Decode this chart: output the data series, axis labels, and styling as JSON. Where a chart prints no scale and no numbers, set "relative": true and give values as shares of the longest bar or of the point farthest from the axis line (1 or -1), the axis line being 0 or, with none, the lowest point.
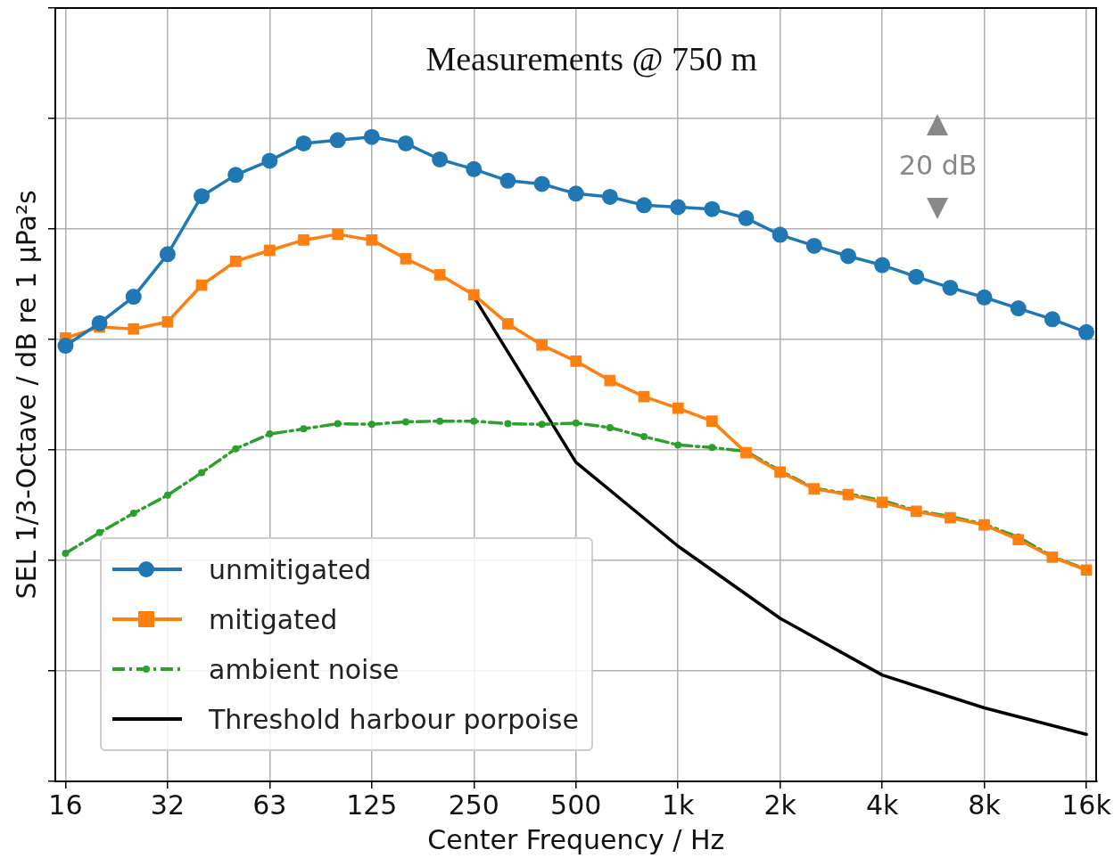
{
  "chart_data": {
    "type": "line",
    "title": "Measurements @ 750 m",
    "xlabel": "Center Frequency / Hz",
    "ylabel": "SEL 1/3-Octave / dB re 1 µPa²s",
    "categories": [
      "16",
      null,
      null,
      "32",
      null,
      null,
      "63",
      null,
      null,
      "125",
      null,
      null,
      "250",
      null,
      null,
      "500",
      null,
      null,
      "1k",
      null,
      null,
      "2k",
      null,
      null,
      "4k",
      null,
      null,
      "8k",
      null,
      null,
      "16k"
    ],
    "relative": true,
    "grid": true,
    "legend": "bottom left",
    "annotations": [
      "20 dB"
    ],
    "series": [
      {
        "name": "unmitigated",
        "color": "#1f77b4",
        "marker": "circle",
        "line_style": "solid",
        "values": [
          0.676,
          0.711,
          0.752,
          0.818,
          0.908,
          0.941,
          0.963,
          0.99,
          0.995,
          1,
          0.99,
          0.965,
          0.95,
          0.932,
          0.927,
          0.912,
          0.907,
          0.894,
          0.891,
          0.888,
          0.874,
          0.848,
          0.831,
          0.815,
          0.801,
          0.783,
          0.766,
          0.751,
          0.734,
          0.717,
          0.697
        ]
      },
      {
        "name": "mitigated",
        "color": "#ff7f0e",
        "marker": "square",
        "line_style": "solid",
        "values": [
          0.688,
          0.705,
          0.702,
          0.713,
          0.77,
          0.807,
          0.824,
          0.84,
          0.849,
          0.84,
          0.811,
          0.786,
          0.755,
          0.71,
          0.677,
          0.652,
          0.622,
          0.597,
          0.579,
          0.559,
          0.51,
          0.48,
          0.454,
          0.445,
          0.433,
          0.419,
          0.409,
          0.398,
          0.375,
          0.348,
          0.328
        ]
      },
      {
        "name": "ambient noise",
        "color": "#2ca02c",
        "marker": "circle",
        "line_style": "dashed",
        "values": [
          0.354,
          0.386,
          0.416,
          0.444,
          0.479,
          0.516,
          0.539,
          0.547,
          0.555,
          0.554,
          0.558,
          0.559,
          0.559,
          0.555,
          0.554,
          0.556,
          0.549,
          0.535,
          0.522,
          0.518,
          0.512,
          0.482,
          0.455,
          0.446,
          0.436,
          0.42,
          0.411,
          0.399,
          0.379,
          0.349,
          0.329
        ]
      },
      {
        "name": "Threshold harbour porpoise",
        "color": "#000000",
        "marker": "none",
        "line_style": "solid",
        "x": [
          "250",
          "500",
          "1k",
          "2k",
          "4k",
          "8k",
          "16k"
        ],
        "values": [
          0.752,
          0.495,
          0.365,
          0.253,
          0.165,
          0.114,
          0.073
        ]
      }
    ]
  }
}
